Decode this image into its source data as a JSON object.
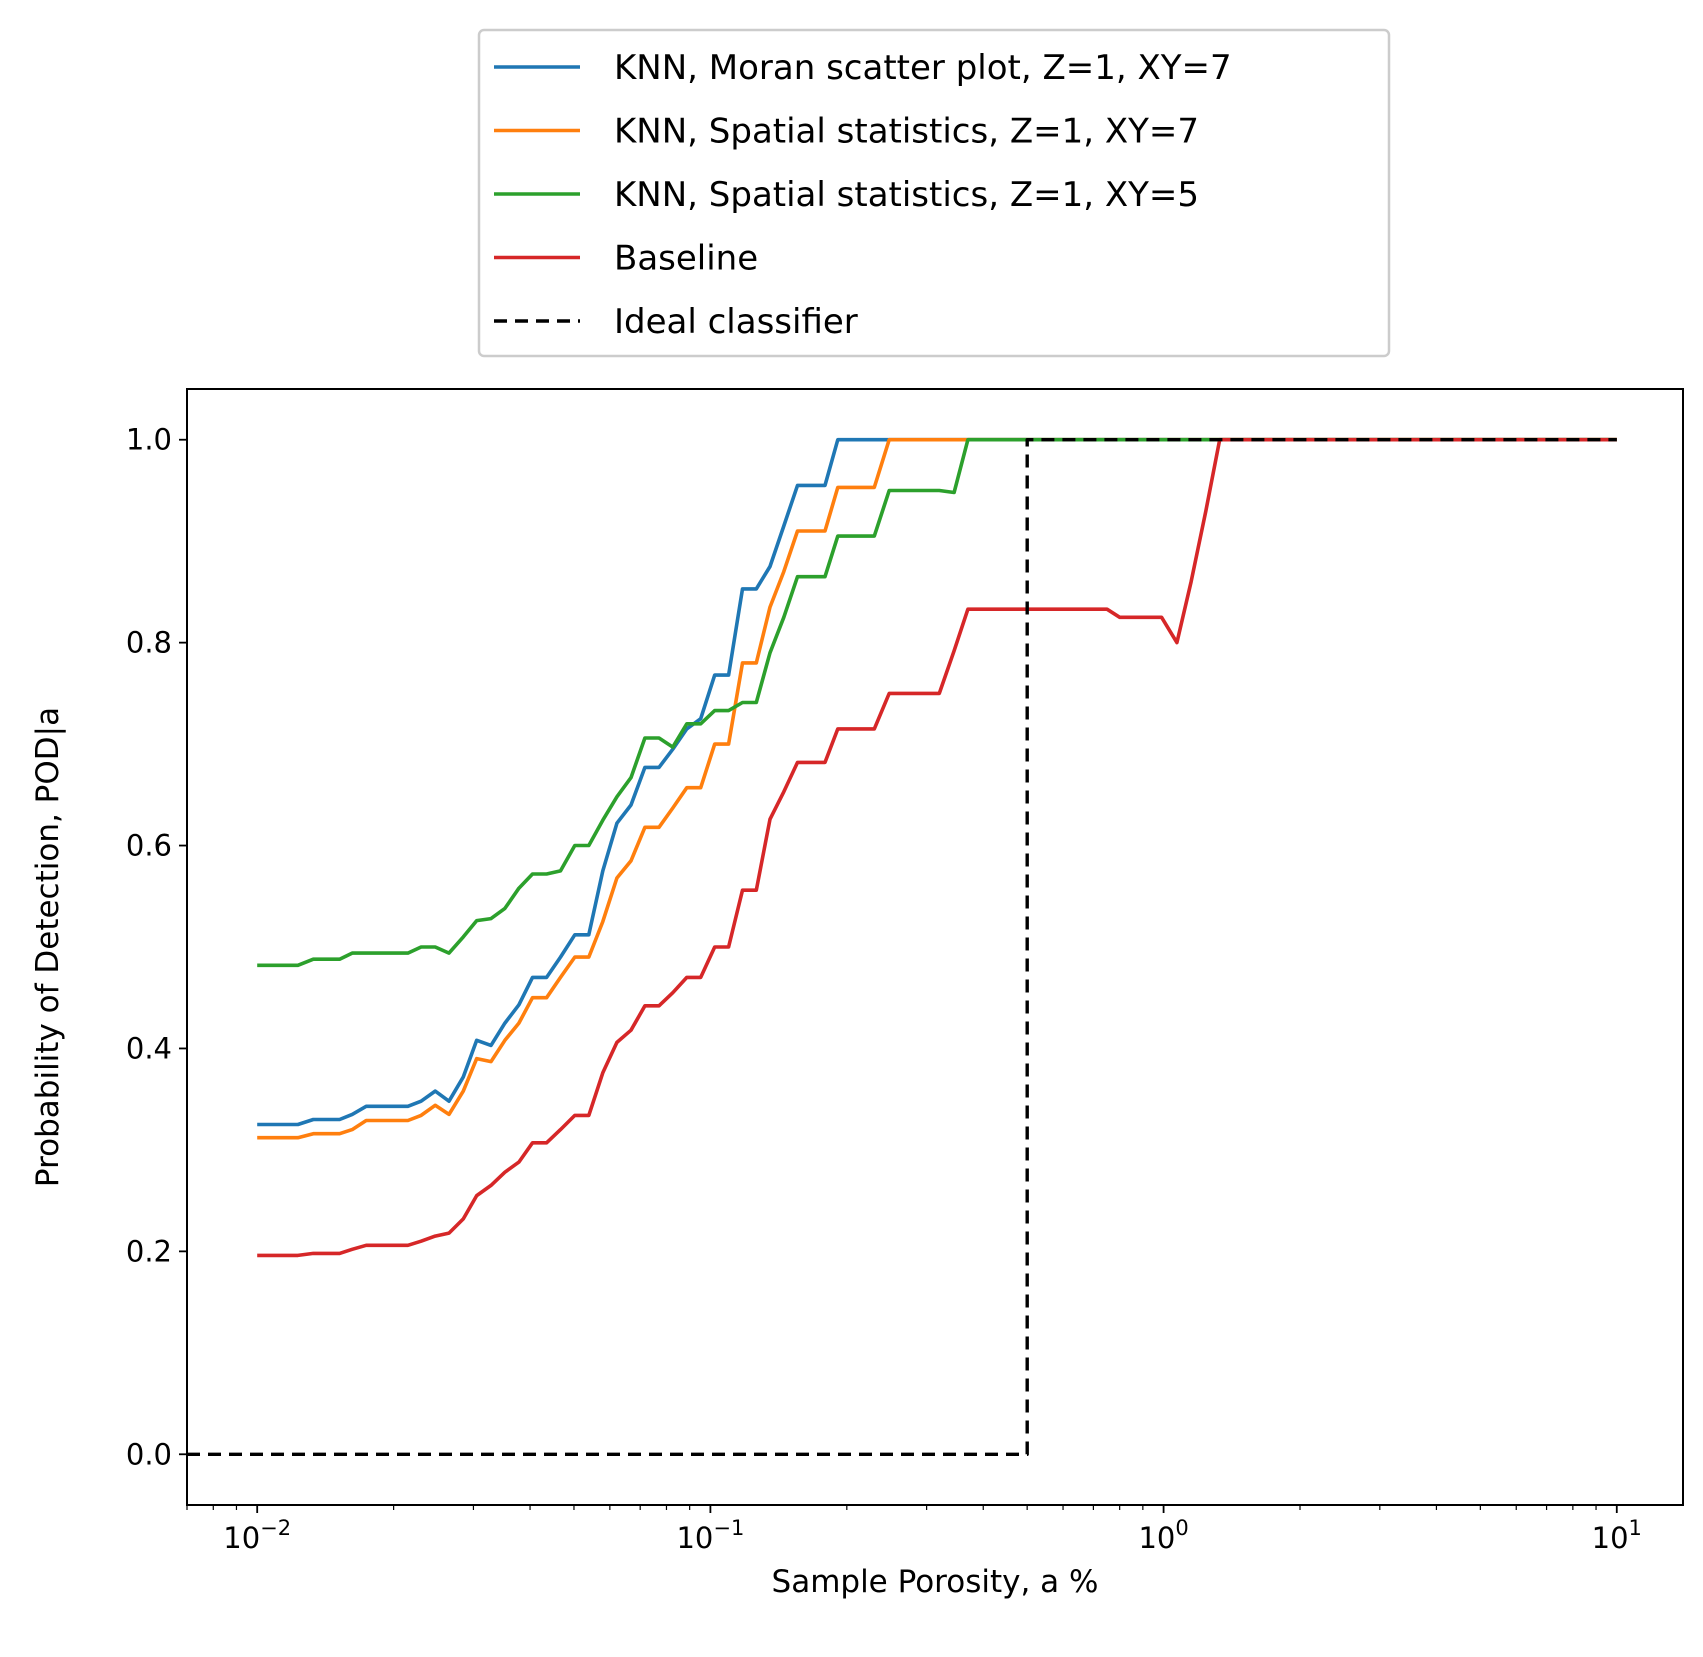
{
  "chart_data": {
    "type": "line",
    "xscale": "log",
    "xlim": [
      0.007,
      14
    ],
    "ylim": [
      -0.05,
      1.05
    ],
    "xlabel": "Sample Porosity, a %",
    "ylabel": "Probability of Detection, POD|a",
    "grid": false,
    "legend_placement": "above plot, centered",
    "x_major_ticks": [
      {
        "value": 0.01,
        "base": "10",
        "exp": "−2"
      },
      {
        "value": 0.1,
        "base": "10",
        "exp": "−1"
      },
      {
        "value": 1,
        "base": "10",
        "exp": "0"
      },
      {
        "value": 10,
        "base": "10",
        "exp": "1"
      }
    ],
    "y_ticks": [
      {
        "value": 0.0,
        "label": "0.0"
      },
      {
        "value": 0.2,
        "label": "0.2"
      },
      {
        "value": 0.4,
        "label": "0.4"
      },
      {
        "value": 0.6,
        "label": "0.6"
      },
      {
        "value": 0.8,
        "label": "0.8"
      },
      {
        "value": 1.0,
        "label": "1.0"
      }
    ],
    "series": [
      {
        "name": "KNN, Moran scatter plot, Z=1, XY=7",
        "color": "#1f77b4",
        "dash": "solid",
        "points": [
          [
            0.01,
            0.325
          ],
          [
            0.0123,
            0.325
          ],
          [
            0.0133,
            0.33
          ],
          [
            0.0152,
            0.33
          ],
          [
            0.0162,
            0.335
          ],
          [
            0.0174,
            0.343
          ],
          [
            0.0215,
            0.343
          ],
          [
            0.023,
            0.348
          ],
          [
            0.0247,
            0.358
          ],
          [
            0.0265,
            0.348
          ],
          [
            0.0285,
            0.372
          ],
          [
            0.0305,
            0.408
          ],
          [
            0.0328,
            0.403
          ],
          [
            0.0352,
            0.425
          ],
          [
            0.0378,
            0.443
          ],
          [
            0.0405,
            0.47
          ],
          [
            0.0435,
            0.47
          ],
          [
            0.0467,
            0.49
          ],
          [
            0.0502,
            0.512
          ],
          [
            0.0539,
            0.512
          ],
          [
            0.0579,
            0.575
          ],
          [
            0.0622,
            0.622
          ],
          [
            0.0668,
            0.64
          ],
          [
            0.0717,
            0.677
          ],
          [
            0.077,
            0.677
          ],
          [
            0.0826,
            0.695
          ],
          [
            0.0887,
            0.715
          ],
          [
            0.0952,
            0.725
          ],
          [
            0.1022,
            0.768
          ],
          [
            0.1097,
            0.768
          ],
          [
            0.1177,
            0.853
          ],
          [
            0.1263,
            0.853
          ],
          [
            0.1354,
            0.875
          ],
          [
            0.1452,
            0.915
          ],
          [
            0.1557,
            0.955
          ],
          [
            0.167,
            0.955
          ],
          [
            0.179,
            0.955
          ],
          [
            0.191,
            1.0
          ],
          [
            10,
            1.0
          ]
        ]
      },
      {
        "name": "KNN, Spatial statistics, Z=1, XY=7",
        "color": "#ff7f0e",
        "dash": "solid",
        "points": [
          [
            0.01,
            0.312
          ],
          [
            0.0123,
            0.312
          ],
          [
            0.0133,
            0.316
          ],
          [
            0.0152,
            0.316
          ],
          [
            0.0162,
            0.32
          ],
          [
            0.0174,
            0.329
          ],
          [
            0.0215,
            0.329
          ],
          [
            0.023,
            0.334
          ],
          [
            0.0247,
            0.344
          ],
          [
            0.0265,
            0.335
          ],
          [
            0.0285,
            0.358
          ],
          [
            0.0305,
            0.39
          ],
          [
            0.0328,
            0.387
          ],
          [
            0.0352,
            0.408
          ],
          [
            0.0378,
            0.425
          ],
          [
            0.0405,
            0.45
          ],
          [
            0.0435,
            0.45
          ],
          [
            0.0467,
            0.47
          ],
          [
            0.0502,
            0.49
          ],
          [
            0.0539,
            0.49
          ],
          [
            0.0579,
            0.525
          ],
          [
            0.0622,
            0.568
          ],
          [
            0.0668,
            0.585
          ],
          [
            0.0717,
            0.618
          ],
          [
            0.077,
            0.618
          ],
          [
            0.0826,
            0.637
          ],
          [
            0.0887,
            0.657
          ],
          [
            0.0952,
            0.657
          ],
          [
            0.1022,
            0.7
          ],
          [
            0.1097,
            0.7
          ],
          [
            0.1177,
            0.78
          ],
          [
            0.1263,
            0.78
          ],
          [
            0.1354,
            0.835
          ],
          [
            0.1452,
            0.87
          ],
          [
            0.1557,
            0.91
          ],
          [
            0.167,
            0.91
          ],
          [
            0.179,
            0.91
          ],
          [
            0.191,
            0.953
          ],
          [
            0.23,
            0.953
          ],
          [
            0.248,
            1.0
          ],
          [
            10,
            1.0
          ]
        ]
      },
      {
        "name": "KNN, Spatial statistics, Z=1, XY=5",
        "color": "#2ca02c",
        "dash": "solid",
        "points": [
          [
            0.01,
            0.482
          ],
          [
            0.0123,
            0.482
          ],
          [
            0.0133,
            0.488
          ],
          [
            0.0152,
            0.488
          ],
          [
            0.0162,
            0.494
          ],
          [
            0.0215,
            0.494
          ],
          [
            0.023,
            0.5
          ],
          [
            0.0247,
            0.5
          ],
          [
            0.0265,
            0.494
          ],
          [
            0.0285,
            0.51
          ],
          [
            0.0305,
            0.526
          ],
          [
            0.0328,
            0.528
          ],
          [
            0.0352,
            0.538
          ],
          [
            0.0378,
            0.558
          ],
          [
            0.0405,
            0.572
          ],
          [
            0.0435,
            0.572
          ],
          [
            0.0467,
            0.575
          ],
          [
            0.0502,
            0.6
          ],
          [
            0.0539,
            0.6
          ],
          [
            0.0579,
            0.625
          ],
          [
            0.0622,
            0.648
          ],
          [
            0.0668,
            0.667
          ],
          [
            0.0717,
            0.706
          ],
          [
            0.077,
            0.706
          ],
          [
            0.0826,
            0.697
          ],
          [
            0.0887,
            0.72
          ],
          [
            0.0952,
            0.72
          ],
          [
            0.1022,
            0.733
          ],
          [
            0.1097,
            0.733
          ],
          [
            0.1177,
            0.741
          ],
          [
            0.1263,
            0.741
          ],
          [
            0.1354,
            0.79
          ],
          [
            0.1452,
            0.825
          ],
          [
            0.1557,
            0.865
          ],
          [
            0.167,
            0.865
          ],
          [
            0.179,
            0.865
          ],
          [
            0.191,
            0.905
          ],
          [
            0.23,
            0.905
          ],
          [
            0.248,
            0.95
          ],
          [
            0.32,
            0.95
          ],
          [
            0.345,
            0.948
          ],
          [
            0.37,
            1.0
          ],
          [
            10,
            1.0
          ]
        ]
      },
      {
        "name": "Baseline",
        "color": "#d62728",
        "dash": "solid",
        "points": [
          [
            0.01,
            0.196
          ],
          [
            0.0123,
            0.196
          ],
          [
            0.0133,
            0.198
          ],
          [
            0.0152,
            0.198
          ],
          [
            0.0162,
            0.202
          ],
          [
            0.0174,
            0.206
          ],
          [
            0.0215,
            0.206
          ],
          [
            0.023,
            0.21
          ],
          [
            0.0247,
            0.215
          ],
          [
            0.0265,
            0.218
          ],
          [
            0.0285,
            0.232
          ],
          [
            0.0305,
            0.255
          ],
          [
            0.0328,
            0.265
          ],
          [
            0.0352,
            0.278
          ],
          [
            0.0378,
            0.288
          ],
          [
            0.0405,
            0.307
          ],
          [
            0.0435,
            0.307
          ],
          [
            0.0467,
            0.32
          ],
          [
            0.0502,
            0.334
          ],
          [
            0.0539,
            0.334
          ],
          [
            0.0579,
            0.376
          ],
          [
            0.0622,
            0.406
          ],
          [
            0.0668,
            0.418
          ],
          [
            0.0717,
            0.442
          ],
          [
            0.077,
            0.442
          ],
          [
            0.0826,
            0.455
          ],
          [
            0.0887,
            0.47
          ],
          [
            0.0952,
            0.47
          ],
          [
            0.1022,
            0.5
          ],
          [
            0.1097,
            0.5
          ],
          [
            0.1177,
            0.556
          ],
          [
            0.1263,
            0.556
          ],
          [
            0.1354,
            0.626
          ],
          [
            0.1452,
            0.653
          ],
          [
            0.1557,
            0.682
          ],
          [
            0.167,
            0.682
          ],
          [
            0.179,
            0.682
          ],
          [
            0.191,
            0.715
          ],
          [
            0.23,
            0.715
          ],
          [
            0.248,
            0.75
          ],
          [
            0.32,
            0.75
          ],
          [
            0.345,
            0.792
          ],
          [
            0.37,
            0.833
          ],
          [
            0.75,
            0.833
          ],
          [
            0.8,
            0.825
          ],
          [
            0.99,
            0.825
          ],
          [
            1.07,
            0.8
          ],
          [
            1.15,
            0.86
          ],
          [
            1.24,
            0.93
          ],
          [
            1.33,
            1.0
          ],
          [
            10,
            1.0
          ]
        ]
      },
      {
        "name": "Ideal classifier",
        "color": "#000000",
        "dash": "dashed",
        "points": [
          [
            0.007,
            0.0
          ],
          [
            0.5,
            0.0
          ],
          [
            0.5,
            1.0
          ],
          [
            10,
            1.0
          ]
        ]
      }
    ]
  }
}
